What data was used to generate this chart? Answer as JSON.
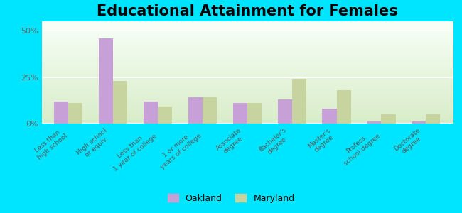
{
  "title": "Educational Attainment for Females",
  "categories": [
    "Less than\nhigh school",
    "High school\nor equiv.",
    "Less than\n1 year of college",
    "1 or more\nyears of college",
    "Associate\ndegree",
    "Bachelor's\ndegree",
    "Master's\ndegree",
    "Profess.\nschool degree",
    "Doctorate\ndegree"
  ],
  "oakland_values": [
    12,
    46,
    12,
    14,
    11,
    13,
    8,
    1,
    1
  ],
  "maryland_values": [
    11,
    23,
    9,
    14,
    11,
    24,
    18,
    5,
    5
  ],
  "oakland_color": "#c8a0d8",
  "maryland_color": "#c8d4a0",
  "background_top": "#f8fff8",
  "background_bottom": "#d8edc8",
  "outer_bg": "#00e5ff",
  "ylim": [
    0,
    55
  ],
  "yticks": [
    0,
    25,
    50
  ],
  "ytick_labels": [
    "0%",
    "25%",
    "50%"
  ],
  "legend_labels": [
    "Oakland",
    "Maryland"
  ],
  "title_fontsize": 15,
  "label_fontsize": 6.5,
  "tick_fontsize": 8
}
